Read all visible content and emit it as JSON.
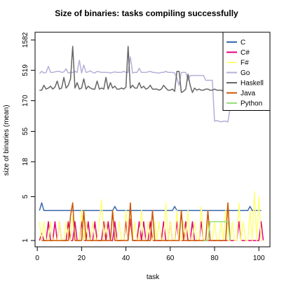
{
  "chart_data": {
    "type": "line",
    "title": "Size of binaries: tasks compiling successfully",
    "xlabel": "task",
    "ylabel": "size of binaries (mean)",
    "xlim": [
      -1,
      105
    ],
    "ylim": [
      1,
      1582
    ],
    "y_scale": "log",
    "x_ticks": [
      0,
      20,
      40,
      60,
      80,
      100
    ],
    "x_tick_labels": [
      "0",
      "20",
      "40",
      "60",
      "80",
      "100"
    ],
    "y_ticks": [
      1,
      5,
      18,
      55,
      170,
      519,
      1582
    ],
    "y_tick_labels": [
      "1",
      "5",
      "18",
      "55",
      "170",
      "519",
      "1582"
    ],
    "legend_position": "top-right",
    "grid": false,
    "series": [
      {
        "name": "C",
        "color": "#3a6aac",
        "x": [
          1,
          2,
          3,
          10,
          11,
          15,
          16,
          24,
          25,
          26,
          27,
          34,
          35,
          36,
          37,
          40,
          41,
          42,
          43,
          48,
          49,
          50,
          54,
          55,
          56,
          57,
          60,
          61,
          62,
          63,
          67,
          68,
          69,
          70,
          76,
          77,
          78,
          82,
          83,
          84,
          85,
          90,
          91,
          92,
          93,
          95,
          96,
          97,
          98,
          99,
          100,
          101
        ],
        "y": [
          3,
          4,
          3,
          3,
          3,
          3,
          3,
          3,
          3,
          3,
          3,
          3,
          3.5,
          3,
          3,
          3,
          3,
          3,
          3,
          3,
          3,
          3,
          3,
          3,
          3,
          3,
          3,
          3,
          3.5,
          3,
          3,
          3,
          3,
          3,
          3,
          3,
          3,
          3,
          3,
          3,
          3,
          3,
          3,
          3,
          3,
          3,
          3.5,
          3,
          3,
          3,
          3,
          3
        ]
      },
      {
        "name": "C#",
        "color": "#e4007c",
        "x": [
          1,
          2,
          3,
          4,
          5,
          6,
          7,
          8,
          9,
          10,
          11,
          12,
          13,
          14,
          15,
          16,
          17,
          18,
          19,
          20,
          21,
          22,
          23,
          24,
          25,
          26,
          27,
          28,
          29,
          30,
          31,
          32,
          33,
          34,
          35,
          36,
          37,
          38,
          39,
          40,
          41,
          42,
          43,
          44,
          45,
          46,
          47,
          48,
          49,
          50,
          51,
          52,
          53,
          54,
          55,
          56,
          57,
          58,
          59,
          60,
          61,
          62,
          63,
          64,
          65,
          66,
          67,
          68,
          69,
          70,
          71,
          72,
          73,
          74,
          75,
          76,
          77,
          78,
          79,
          80,
          81,
          82,
          83,
          84,
          85,
          86,
          87,
          88,
          89,
          90,
          91,
          92,
          93,
          94,
          95,
          96,
          97,
          98,
          99,
          100,
          101,
          102
        ],
        "y": [
          1,
          1.3,
          1,
          1,
          2,
          1,
          1,
          2,
          1,
          2,
          1,
          1,
          1,
          2,
          1,
          1,
          2,
          1,
          1,
          2,
          1,
          1,
          2,
          1,
          1,
          2,
          1,
          1,
          1,
          2,
          1,
          2,
          1,
          1,
          2,
          1,
          1,
          1,
          1,
          2,
          1,
          2.2,
          1,
          1,
          1,
          2,
          1,
          2,
          1,
          1,
          2,
          1,
          1,
          1,
          1,
          1,
          2,
          1,
          1,
          2,
          1,
          1,
          2,
          1,
          1,
          1,
          2,
          1,
          1,
          2,
          1,
          1,
          1,
          2,
          1,
          1,
          1,
          1,
          1,
          1,
          1,
          1,
          1,
          1,
          1,
          1,
          1,
          1,
          1,
          1,
          2,
          1,
          1,
          1,
          1,
          1,
          1,
          1,
          1,
          1,
          2,
          1
        ]
      },
      {
        "name": "F#",
        "color": "#ffff7a",
        "x": [
          1,
          2,
          3,
          4,
          5,
          6,
          7,
          8,
          9,
          10,
          11,
          12,
          13,
          14,
          15,
          16,
          17,
          18,
          19,
          20,
          21,
          22,
          23,
          24,
          25,
          26,
          27,
          28,
          29,
          30,
          31,
          32,
          33,
          34,
          35,
          36,
          37,
          38,
          39,
          40,
          41,
          42,
          43,
          44,
          45,
          46,
          47,
          48,
          49,
          50,
          51,
          52,
          53,
          54,
          55,
          56,
          57,
          58,
          59,
          60,
          61,
          62,
          63,
          64,
          65,
          66,
          67,
          68,
          69,
          70,
          71,
          72,
          73,
          74,
          75,
          76,
          77,
          78,
          79,
          80,
          81,
          82,
          83,
          84,
          85,
          86,
          87,
          88,
          89,
          90,
          91,
          92,
          93,
          94,
          95,
          96,
          97,
          98,
          99,
          100,
          101,
          102
        ],
        "y": [
          2,
          1,
          2,
          1,
          1,
          2,
          1,
          1,
          1,
          2,
          1,
          1,
          2,
          1,
          1,
          2.5,
          1,
          1,
          1,
          3,
          1,
          2,
          1,
          1,
          2,
          1,
          1,
          2,
          4.5,
          1,
          2,
          1,
          1,
          3,
          1,
          1,
          2,
          1,
          1,
          3,
          1,
          3.5,
          1,
          2,
          1,
          1,
          3,
          1,
          1,
          2,
          1,
          1,
          2,
          1,
          2,
          1,
          1,
          4,
          1,
          2,
          1,
          1,
          3,
          1,
          1,
          2,
          1,
          3,
          1,
          1,
          2,
          1,
          1,
          3.5,
          1,
          1,
          2,
          1,
          1,
          2,
          1,
          1,
          2,
          1,
          3,
          1,
          1,
          2,
          1,
          1,
          4,
          1,
          2,
          1,
          1,
          3,
          1,
          6,
          1,
          5,
          1,
          1
        ]
      },
      {
        "name": "Go",
        "color": "#b9aed8",
        "x": [
          1,
          2,
          3,
          4,
          5,
          6,
          7,
          8,
          9,
          10,
          11,
          12,
          13,
          14,
          15,
          16,
          17,
          18,
          19,
          20,
          21,
          22,
          23,
          24,
          25,
          26,
          27,
          28,
          29,
          30,
          31,
          32,
          33,
          34,
          35,
          36,
          37,
          38,
          39,
          40,
          41,
          42,
          43,
          44,
          45,
          46,
          47,
          48,
          49,
          50,
          51,
          52,
          53,
          54,
          55,
          56,
          57,
          58,
          59,
          60,
          61,
          62,
          63,
          64,
          65,
          66,
          67,
          68,
          69,
          70,
          71,
          72,
          73,
          74,
          75,
          76,
          77,
          78,
          79,
          80,
          81,
          82,
          83,
          84,
          85,
          86,
          87
        ],
        "y": [
          460,
          500,
          470,
          480,
          600,
          480,
          480,
          490,
          500,
          500,
          480,
          490,
          550,
          470,
          480,
          480,
          500,
          480,
          750,
          470,
          630,
          480,
          490,
          510,
          480,
          470,
          500,
          490,
          480,
          480,
          480,
          480,
          470,
          480,
          490,
          480,
          480,
          480,
          500,
          480,
          480,
          850,
          470,
          480,
          480,
          560,
          480,
          480,
          480,
          490,
          500,
          480,
          480,
          470,
          470,
          480,
          480,
          500,
          480,
          480,
          480,
          470,
          390,
          300,
          480,
          480,
          480,
          360,
          430,
          430,
          430,
          430,
          430,
          430,
          430,
          360,
          360,
          360,
          360,
          80,
          82,
          80,
          78,
          80,
          80,
          78,
          130
        ]
      },
      {
        "name": "Haskell",
        "color": "#666666",
        "x": [
          1,
          2,
          3,
          4,
          5,
          6,
          7,
          8,
          9,
          10,
          11,
          12,
          13,
          14,
          15,
          16,
          17,
          18,
          19,
          20,
          21,
          22,
          23,
          24,
          25,
          26,
          27,
          28,
          29,
          30,
          31,
          32,
          33,
          34,
          35,
          36,
          37,
          38,
          39,
          40,
          41,
          42,
          43,
          44,
          45,
          46,
          47,
          48,
          49,
          50,
          51,
          52,
          53,
          54,
          55,
          56,
          57,
          58,
          59,
          60,
          61,
          62,
          63,
          64,
          65,
          66,
          67,
          68,
          69,
          70,
          71,
          72,
          73,
          74,
          75,
          76,
          77,
          78,
          79,
          80,
          81,
          82,
          83,
          84,
          85,
          86,
          87
        ],
        "y": [
          250,
          250,
          300,
          260,
          270,
          290,
          260,
          280,
          350,
          260,
          270,
          400,
          270,
          300,
          380,
          1250,
          270,
          330,
          260,
          270,
          380,
          260,
          290,
          270,
          260,
          260,
          350,
          260,
          270,
          260,
          400,
          260,
          330,
          270,
          290,
          260,
          260,
          270,
          260,
          280,
          1250,
          270,
          300,
          270,
          270,
          330,
          270,
          290,
          260,
          270,
          300,
          260,
          260,
          260,
          250,
          260,
          300,
          270,
          250,
          250,
          260,
          240,
          500,
          500,
          230,
          240,
          260,
          450,
          300,
          230,
          270,
          250,
          260,
          250,
          250,
          260,
          260,
          250,
          250,
          260,
          250,
          250,
          250,
          240,
          230,
          270,
          250
        ]
      },
      {
        "name": "Java",
        "color": "#cc5500",
        "x": [
          2,
          3,
          4,
          5,
          6,
          7,
          8,
          9,
          10,
          11,
          12,
          13,
          14,
          15,
          16,
          17,
          18,
          19,
          20,
          21,
          22,
          23,
          24,
          25,
          26,
          27,
          28,
          29,
          30,
          31,
          32,
          33,
          34,
          35,
          36,
          37,
          38,
          39,
          40,
          41,
          42,
          43,
          44,
          45,
          46,
          47,
          48,
          49,
          50,
          51,
          52,
          53,
          54,
          55,
          56,
          57,
          58,
          59,
          60,
          61,
          62,
          63,
          64,
          65,
          66,
          67,
          68,
          69,
          70,
          71,
          72,
          73,
          74,
          75,
          76,
          77,
          78,
          79,
          80,
          81,
          82,
          83,
          84,
          85,
          86,
          87
        ],
        "y": [
          1,
          1,
          1,
          1,
          1,
          1,
          1,
          1,
          1,
          1,
          1,
          1,
          1,
          2.5,
          4,
          1,
          1,
          1,
          1,
          3,
          1,
          1,
          1,
          1,
          1,
          1,
          1,
          1,
          1,
          1,
          1,
          1,
          3,
          1,
          1,
          1,
          1,
          1,
          1,
          1,
          4,
          1,
          1,
          1,
          1,
          1,
          1,
          1,
          1,
          1,
          3,
          1,
          1,
          1,
          1,
          1,
          1,
          1,
          1,
          1,
          1,
          1,
          1,
          3,
          1,
          1,
          1,
          1,
          1,
          1,
          1,
          1,
          1,
          1,
          1,
          3,
          1,
          1,
          1,
          1,
          1,
          1,
          1,
          1,
          4,
          1
        ]
      },
      {
        "name": "Python",
        "color": "#99dd77",
        "x": [
          75,
          76,
          77,
          78,
          79,
          80,
          81,
          82,
          83,
          84,
          85,
          86,
          87
        ],
        "y": [
          1,
          1,
          1,
          2,
          2,
          2,
          2,
          2,
          2,
          2,
          2,
          2,
          1
        ]
      }
    ]
  }
}
